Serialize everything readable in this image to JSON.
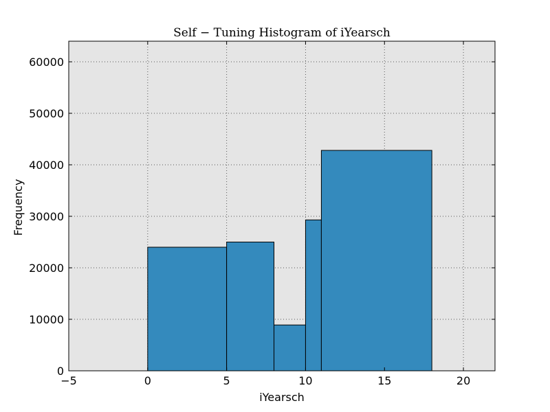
{
  "chart_data": {
    "type": "bar",
    "title": "Self − Tuning Histogram of iYearsch",
    "xlabel": "iYearsch",
    "ylabel": "Frequency",
    "xlim": [
      -5,
      22
    ],
    "ylim": [
      0,
      64000
    ],
    "xticks": [
      -5,
      0,
      5,
      10,
      15,
      20
    ],
    "xtick_labels": [
      "−5",
      "0",
      "5",
      "10",
      "15",
      "20"
    ],
    "yticks": [
      0,
      10000,
      20000,
      30000,
      40000,
      50000,
      60000
    ],
    "ytick_labels": [
      "0",
      "10000",
      "20000",
      "30000",
      "40000",
      "50000",
      "60000"
    ],
    "grid": true,
    "bins": [
      {
        "x0": 0,
        "x1": 5,
        "value": 24000
      },
      {
        "x0": 5,
        "x1": 8,
        "value": 25000
      },
      {
        "x0": 8,
        "x1": 10,
        "value": 8900
      },
      {
        "x0": 10,
        "x1": 11,
        "value": 29300
      },
      {
        "x0": 11,
        "x1": 18,
        "value": 42800
      }
    ],
    "colors": {
      "bar_fill": "#348abd",
      "bar_edge": "#000000",
      "plot_background": "#e5e5e5",
      "grid": "#555555"
    }
  }
}
